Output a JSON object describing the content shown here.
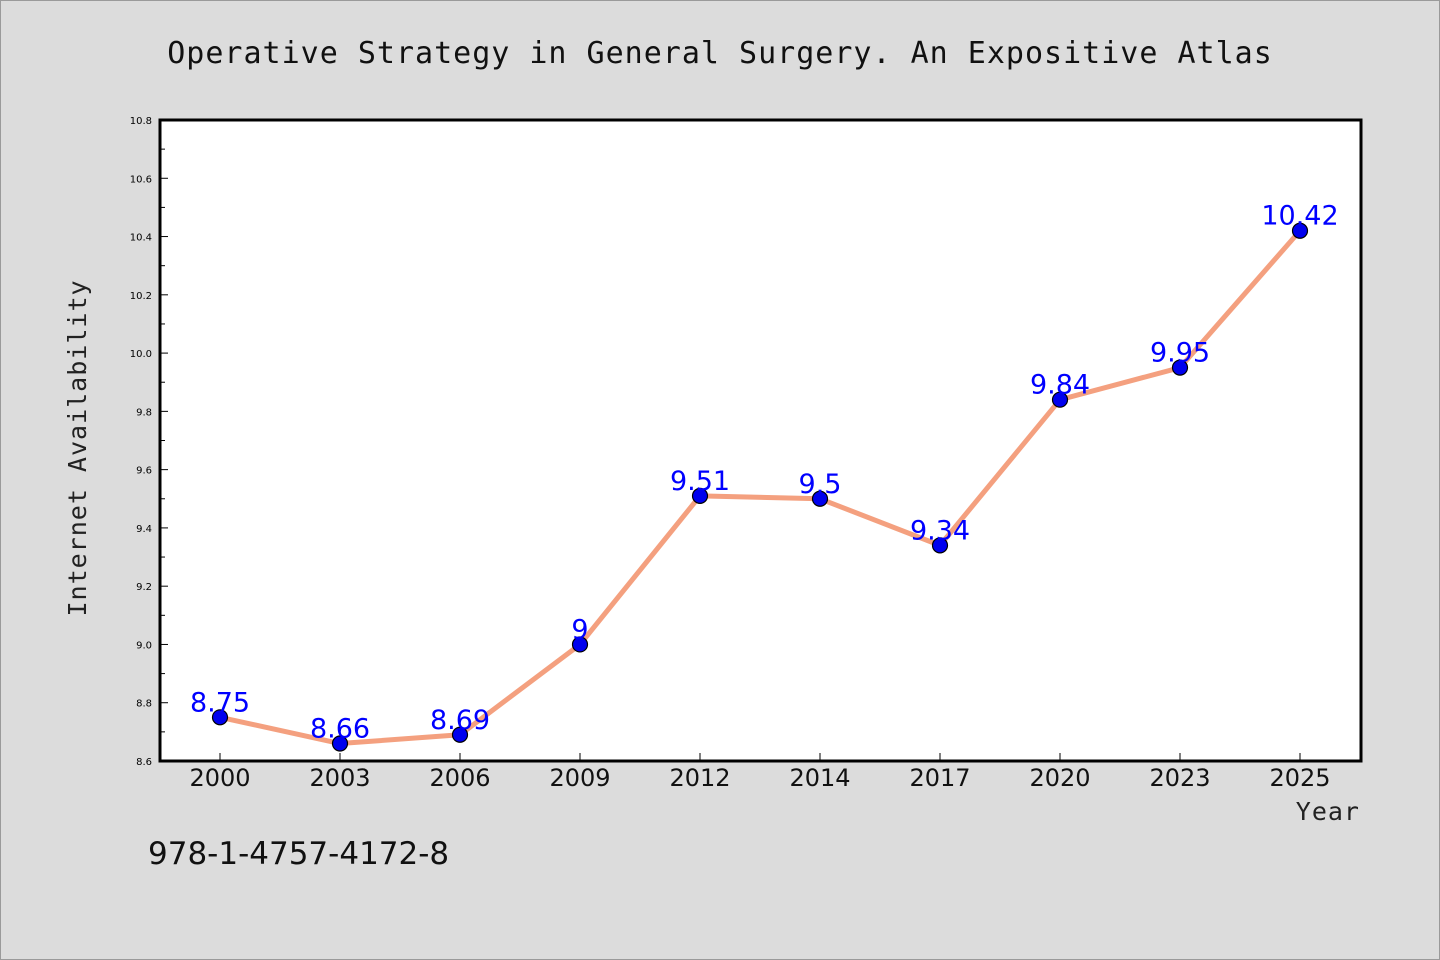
{
  "chart_data": {
    "type": "line",
    "title": "Operative Strategy in General Surgery. An Expositive Atlas",
    "xlabel": "Year",
    "ylabel": "Internet Availability",
    "categories": [
      "2000",
      "2003",
      "2006",
      "2009",
      "2012",
      "2014",
      "2017",
      "2020",
      "2023",
      "2025"
    ],
    "values": [
      8.75,
      8.66,
      8.69,
      9,
      9.51,
      9.5,
      9.34,
      9.84,
      9.95,
      10.42
    ],
    "data_labels": [
      "8.75",
      "8.66",
      "8.69",
      "9",
      "9.51",
      "9.5",
      "9.34",
      "9.84",
      "9.95",
      "10.42"
    ],
    "ylim": [
      8.6,
      10.8
    ],
    "yticks": [
      "8.6",
      "8.8",
      "9.0",
      "9.2",
      "9.4",
      "9.6",
      "9.8",
      "10.0",
      "10.2",
      "10.4",
      "10.6",
      "10.8"
    ],
    "grid": false,
    "legend": "none",
    "colors": {
      "line": "#f4a07f",
      "marker": "#0000ee",
      "data_label": "#0000ff",
      "background": "#dcdcdc",
      "plot_background": "#ffffff"
    }
  },
  "footer": {
    "code": "978-1-4757-4172-8"
  }
}
